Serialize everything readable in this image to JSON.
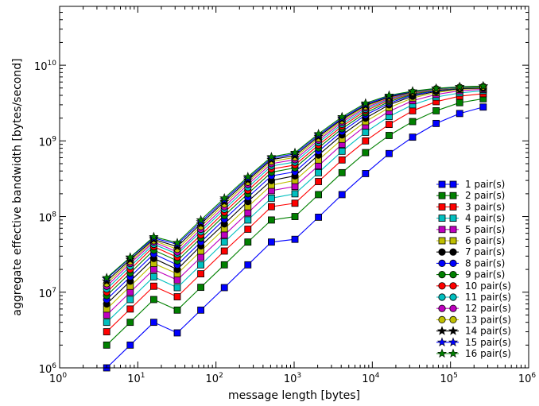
{
  "chart_data": {
    "type": "line",
    "title": "",
    "xlabel": "message length [bytes]",
    "ylabel": "aggregate effective bandwidth [bytes/second]",
    "xscale": "log",
    "yscale": "log",
    "xlim": [
      1,
      1000000
    ],
    "ylim": [
      1000000,
      60000000000
    ],
    "grid": false,
    "legend_position": "bottom-right",
    "x_ticks": [
      {
        "value": 1,
        "base": "10",
        "exp": "0"
      },
      {
        "value": 10,
        "base": "10",
        "exp": "1"
      },
      {
        "value": 100,
        "base": "10",
        "exp": "2"
      },
      {
        "value": 1000,
        "base": "10",
        "exp": "3"
      },
      {
        "value": 10000,
        "base": "10",
        "exp": "4"
      },
      {
        "value": 100000,
        "base": "10",
        "exp": "5"
      },
      {
        "value": 1000000,
        "base": "10",
        "exp": "6"
      }
    ],
    "y_ticks": [
      {
        "value": 1000000,
        "base": "10",
        "exp": "6"
      },
      {
        "value": 10000000,
        "base": "10",
        "exp": "7"
      },
      {
        "value": 100000000,
        "base": "10",
        "exp": "8"
      },
      {
        "value": 1000000000,
        "base": "10",
        "exp": "9"
      },
      {
        "value": 10000000000,
        "base": "10",
        "exp": "10"
      }
    ],
    "x": [
      4,
      8,
      16,
      32,
      64,
      128,
      256,
      512,
      1024,
      2048,
      4096,
      8192,
      16384,
      32768,
      65536,
      131072,
      262144
    ],
    "series": [
      {
        "name": "1 pair(s)",
        "color": "#0000ff",
        "marker": "square",
        "values": [
          1000000,
          2000000,
          4000000,
          2900000,
          5800000,
          11500000,
          23000000,
          46000000,
          50000000,
          98000000,
          195000000,
          370000000,
          680000000,
          1120000000,
          1700000000,
          2300000000,
          2800000000
        ]
      },
      {
        "name": "2 pair(s)",
        "color": "#008000",
        "marker": "square",
        "values": [
          2000000,
          4000000,
          8000000,
          5800000,
          11600000,
          23000000,
          46000000,
          90000000,
          100000000,
          195000000,
          380000000,
          700000000,
          1180000000,
          1800000000,
          2500000000,
          3200000000,
          3600000000
        ]
      },
      {
        "name": "3 pair(s)",
        "color": "#ff0000",
        "marker": "square",
        "values": [
          3000000,
          6000000,
          12000000,
          8700000,
          17500000,
          35000000,
          68000000,
          135000000,
          150000000,
          290000000,
          560000000,
          1000000000,
          1650000000,
          2500000000,
          3300000000,
          3900000000,
          4200000000
        ]
      },
      {
        "name": "4 pair(s)",
        "color": "#00bfbf",
        "marker": "square",
        "values": [
          4000000,
          8000000,
          16000000,
          11500000,
          23000000,
          46000000,
          90000000,
          175000000,
          200000000,
          380000000,
          730000000,
          1300000000,
          2100000000,
          3000000000,
          3800000000,
          4300000000,
          4600000000
        ]
      },
      {
        "name": "5 pair(s)",
        "color": "#bf00bf",
        "marker": "square",
        "values": [
          5000000,
          10000000,
          20000000,
          14500000,
          29000000,
          57000000,
          112000000,
          220000000,
          250000000,
          470000000,
          900000000,
          1580000000,
          2450000000,
          3400000000,
          4100000000,
          4600000000,
          4800000000
        ]
      },
      {
        "name": "6 pair(s)",
        "color": "#bfbf00",
        "marker": "square",
        "values": [
          6000000,
          12000000,
          24000000,
          17500000,
          35000000,
          69000000,
          135000000,
          260000000,
          300000000,
          560000000,
          1050000000,
          1800000000,
          2750000000,
          3700000000,
          4350000000,
          4800000000,
          4950000000
        ]
      },
      {
        "name": "7 pair(s)",
        "color": "#000000",
        "marker": "circle",
        "values": [
          7000000,
          14000000,
          28000000,
          20000000,
          41000000,
          80000000,
          158000000,
          300000000,
          345000000,
          650000000,
          1200000000,
          2000000000,
          3000000000,
          3900000000,
          4500000000,
          4900000000,
          5000000000
        ]
      },
      {
        "name": "8 pair(s)",
        "color": "#0000ff",
        "marker": "circle",
        "values": [
          8000000,
          16000000,
          32000000,
          23000000,
          46000000,
          92000000,
          180000000,
          345000000,
          390000000,
          730000000,
          1330000000,
          2200000000,
          3150000000,
          4050000000,
          4600000000,
          5000000000,
          5050000000
        ]
      },
      {
        "name": "9 pair(s)",
        "color": "#008000",
        "marker": "circle",
        "values": [
          9000000,
          18000000,
          36000000,
          26000000,
          52000000,
          103000000,
          200000000,
          385000000,
          440000000,
          810000000,
          1450000000,
          2350000000,
          3300000000,
          4150000000,
          4700000000,
          5000000000,
          5100000000
        ]
      },
      {
        "name": "10 pair(s)",
        "color": "#ff0000",
        "marker": "circle",
        "values": [
          10000000,
          20000000,
          40000000,
          29000000,
          57000000,
          114000000,
          222000000,
          425000000,
          480000000,
          880000000,
          1560000000,
          2500000000,
          3450000000,
          4250000000,
          4750000000,
          5050000000,
          5150000000
        ]
      },
      {
        "name": "11 pair(s)",
        "color": "#00bfbf",
        "marker": "circle",
        "values": [
          11000000,
          22000000,
          43000000,
          32000000,
          63000000,
          125000000,
          243000000,
          465000000,
          525000000,
          950000000,
          1660000000,
          2620000000,
          3550000000,
          4300000000,
          4800000000,
          5050000000,
          5150000000
        ]
      },
      {
        "name": "12 pair(s)",
        "color": "#bf00bf",
        "marker": "circle",
        "values": [
          12000000,
          24000000,
          46000000,
          34000000,
          68000000,
          135000000,
          265000000,
          500000000,
          565000000,
          1020000000,
          1760000000,
          2740000000,
          3650000000,
          4350000000,
          4850000000,
          5100000000,
          5200000000
        ]
      },
      {
        "name": "13 pair(s)",
        "color": "#bfbf00",
        "marker": "circle",
        "values": [
          13000000,
          25500000,
          48000000,
          37000000,
          74000000,
          146000000,
          285000000,
          535000000,
          605000000,
          1080000000,
          1850000000,
          2850000000,
          3750000000,
          4400000000,
          4850000000,
          5100000000,
          5200000000
        ]
      },
      {
        "name": "14 pair(s)",
        "color": "#000000",
        "marker": "star",
        "values": [
          14000000,
          27000000,
          50000000,
          40000000,
          80000000,
          157000000,
          303000000,
          565000000,
          640000000,
          1140000000,
          1930000000,
          2950000000,
          3800000000,
          4450000000,
          4900000000,
          5150000000,
          5250000000
        ]
      },
      {
        "name": "15 pair(s)",
        "color": "#0000ff",
        "marker": "star",
        "values": [
          15000000,
          28500000,
          52000000,
          43000000,
          85000000,
          166000000,
          320000000,
          590000000,
          675000000,
          1190000000,
          2000000000,
          3050000000,
          3900000000,
          4500000000,
          4900000000,
          5150000000,
          5300000000
        ]
      },
      {
        "name": "16 pair(s)",
        "color": "#008000",
        "marker": "star",
        "values": [
          15500000,
          29000000,
          54000000,
          45000000,
          90000000,
          175000000,
          335000000,
          615000000,
          700000000,
          1240000000,
          2080000000,
          3150000000,
          4000000000,
          4550000000,
          4950000000,
          5200000000,
          5300000000
        ]
      }
    ]
  }
}
